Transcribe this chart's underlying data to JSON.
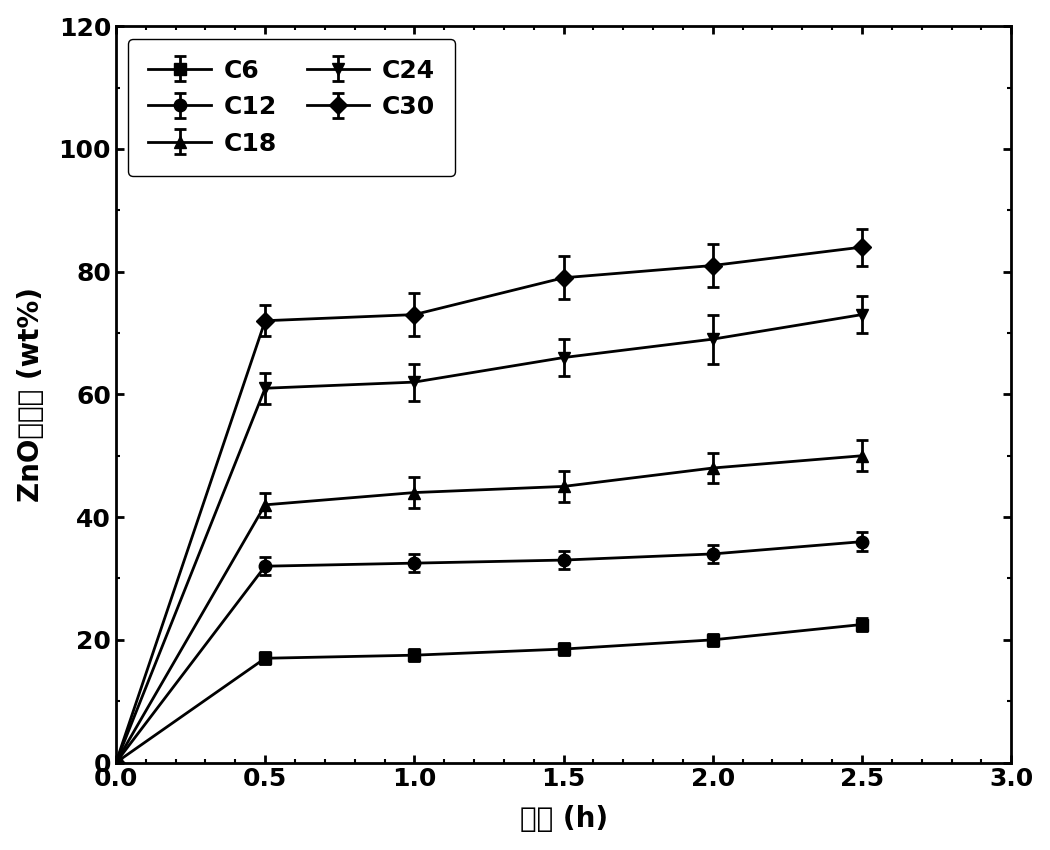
{
  "title": "",
  "xlabel": "时间 (h)",
  "ylabel": "ZnO洗脱率 (wt%)",
  "xlim": [
    0.0,
    3.0
  ],
  "ylim": [
    0,
    120
  ],
  "xticks": [
    0.0,
    0.5,
    1.0,
    1.5,
    2.0,
    2.5,
    3.0
  ],
  "yticks": [
    0,
    20,
    40,
    60,
    80,
    100,
    120
  ],
  "x_data": [
    0.0,
    0.5,
    1.0,
    1.5,
    2.0,
    2.5
  ],
  "series": {
    "C6": {
      "y": [
        0,
        17,
        17.5,
        18.5,
        20,
        22.5
      ],
      "yerr": [
        0,
        1.0,
        1.0,
        1.0,
        1.0,
        1.0
      ],
      "marker": "s",
      "label": "C6"
    },
    "C12": {
      "y": [
        0,
        32,
        32.5,
        33,
        34,
        36
      ],
      "yerr": [
        0,
        1.5,
        1.5,
        1.5,
        1.5,
        1.5
      ],
      "marker": "o",
      "label": "C12"
    },
    "C18": {
      "y": [
        0,
        42,
        44,
        45,
        48,
        50
      ],
      "yerr": [
        0,
        2.0,
        2.5,
        2.5,
        2.5,
        2.5
      ],
      "marker": "^",
      "label": "C18"
    },
    "C24": {
      "y": [
        0,
        61,
        62,
        66,
        69,
        73
      ],
      "yerr": [
        0,
        2.5,
        3.0,
        3.0,
        4.0,
        3.0
      ],
      "marker": "v",
      "label": "C24"
    },
    "C30": {
      "y": [
        0,
        72,
        73,
        79,
        81,
        84
      ],
      "yerr": [
        0,
        2.5,
        3.5,
        3.5,
        3.5,
        3.0
      ],
      "marker": "D",
      "label": "C30"
    }
  },
  "series_order": [
    "C6",
    "C12",
    "C18",
    "C24",
    "C30"
  ],
  "line_color": "#000000",
  "linewidth": 2.0,
  "markersize": 9,
  "legend_fontsize": 18,
  "tick_fontsize": 18,
  "label_fontsize": 20,
  "legend_ncol": 2,
  "legend_loc": "upper left"
}
